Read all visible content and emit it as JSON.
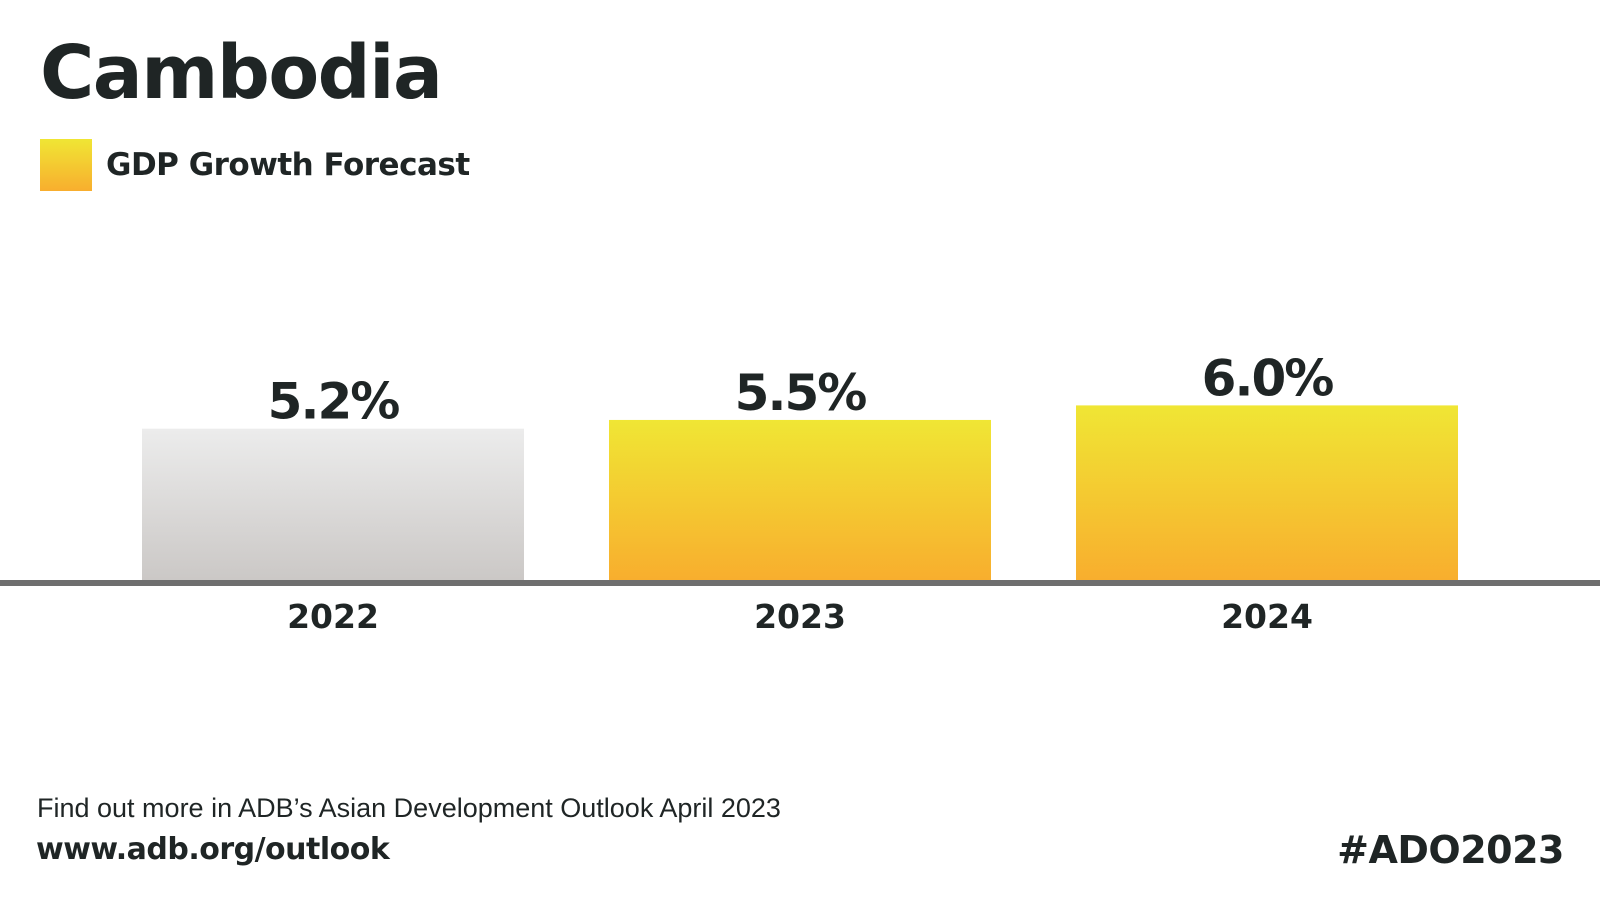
{
  "title": "Cambodia",
  "legend": {
    "label": "GDP Growth Forecast"
  },
  "colors": {
    "text": "#1f2525",
    "axis": "#6e6e6e",
    "actual_top": "#ececec",
    "actual_bottom": "#cbc8c6",
    "forecast_top": "#f0e634",
    "forecast_bottom": "#f8ae2e"
  },
  "chart_data": {
    "type": "bar",
    "title": "Cambodia",
    "xlabel": "",
    "ylabel": "",
    "ylim": [
      0,
      6.0
    ],
    "grid": false,
    "legend": "top-left",
    "legend_entries": [
      "GDP Growth Forecast"
    ],
    "categories": [
      "2022",
      "2023",
      "2024"
    ],
    "values": [
      5.2,
      5.5,
      6.0
    ],
    "data_labels": [
      "5.2%",
      "5.5%",
      "6.0%"
    ],
    "series_kind": [
      "actual",
      "forecast",
      "forecast"
    ]
  },
  "footer": {
    "note": "Find out more in ADB’s Asian Development Outlook April 2023",
    "link": "www.adb.org/outlook",
    "hashtag": "#ADO2023"
  }
}
